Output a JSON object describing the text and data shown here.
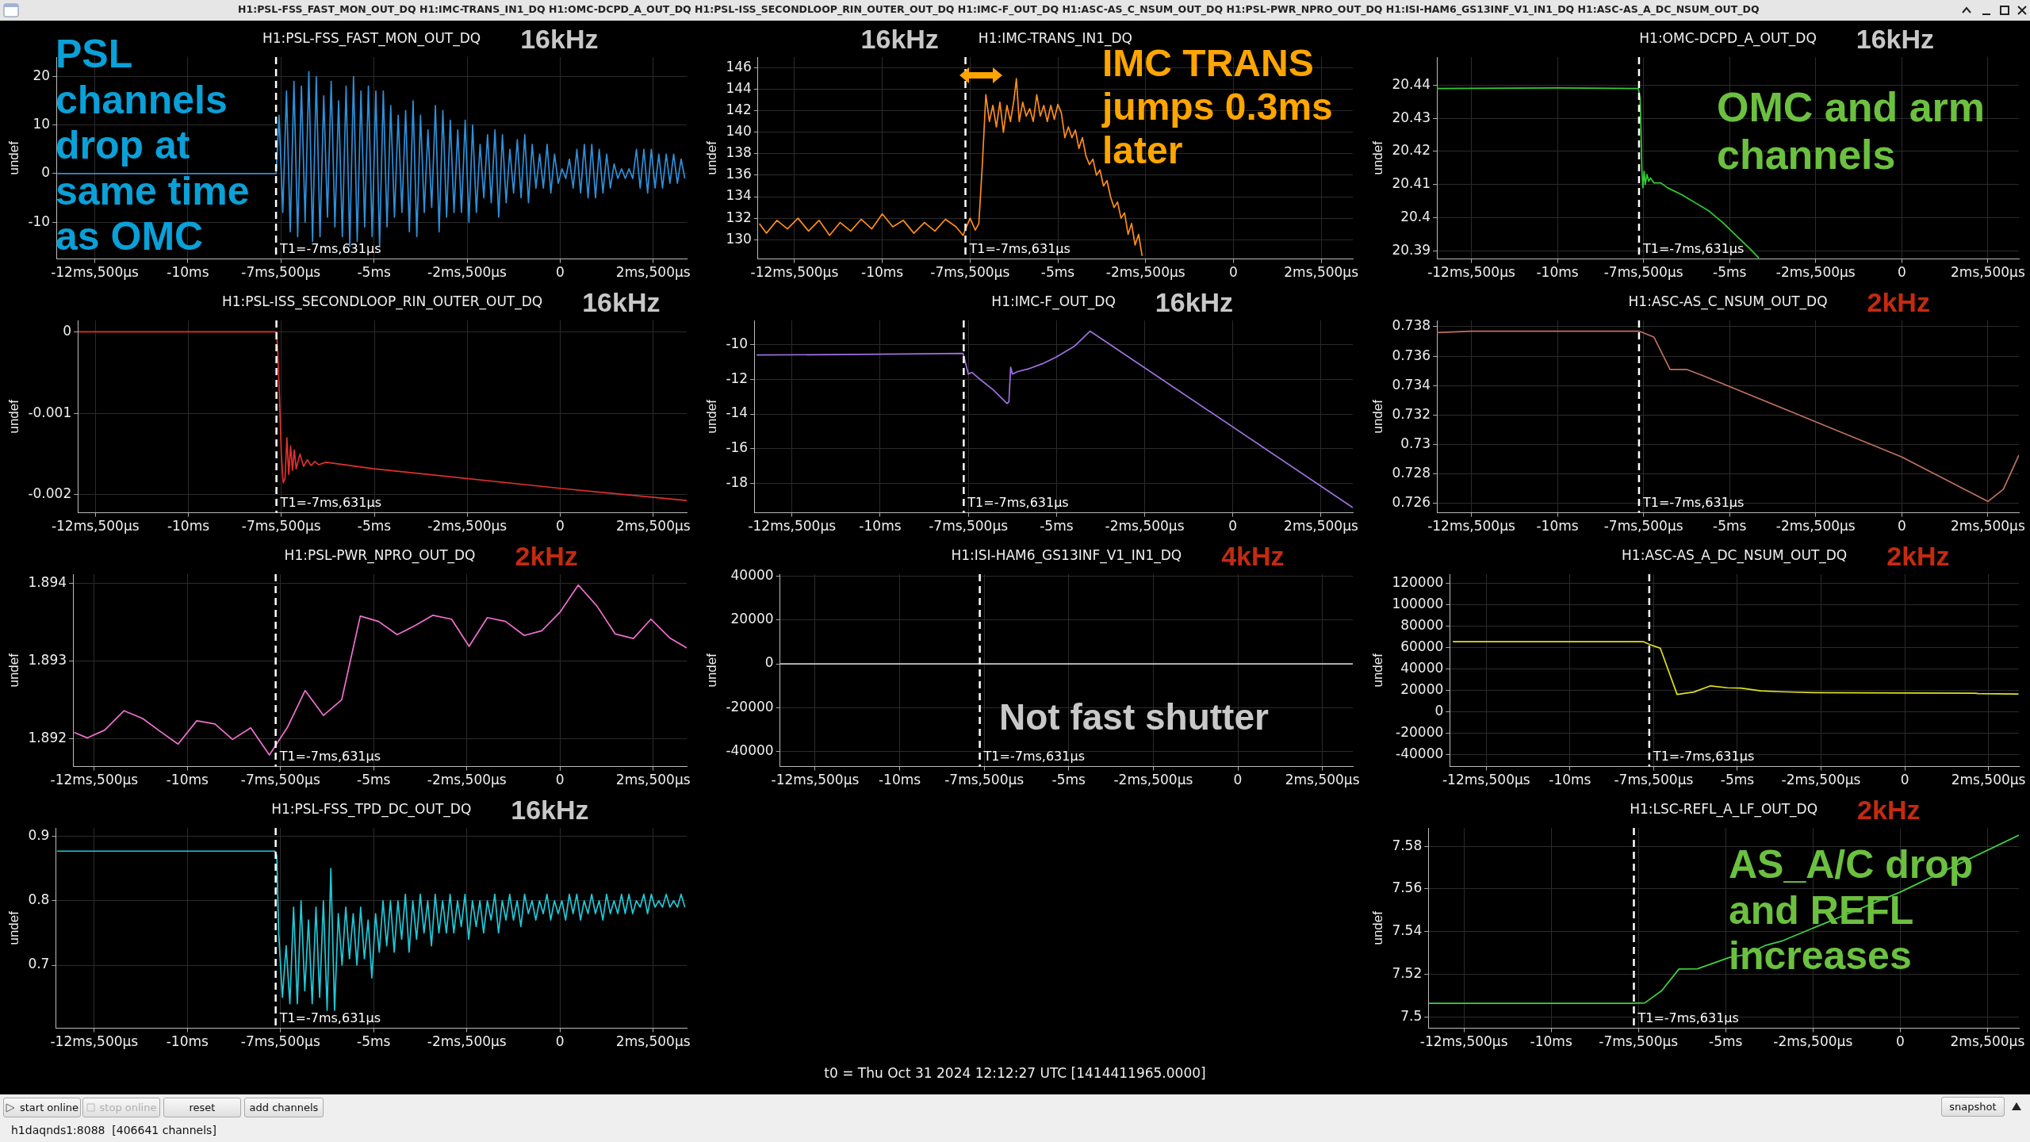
{
  "chart_data": [
    {
      "type": "line",
      "title": "H1:PSL-FSS_FAST_MON_OUT_DQ",
      "ylabel": "undef",
      "annotations": [
        "T1=-7ms,631μs",
        "16kHz",
        "PSL channels drop at same time as OMC"
      ],
      "marker": "none",
      "grid": true,
      "series": [
        {
          "color": "#2f8fd8",
          "x": [
            -13.5,
            -12,
            -10,
            -8,
            -7.63,
            -7.55,
            -7.45,
            -7.35,
            -7.25,
            -7.15,
            -7.05,
            -6.95,
            -6.85,
            -6.75,
            -6.65,
            -6.55,
            -6.45,
            -6.35,
            -6.25,
            -6.15,
            -6.05,
            -5.95,
            -5.85,
            -5.75,
            -5.65,
            -5.55,
            -5.45,
            -5.35,
            -5.25,
            -5.15,
            -5.05,
            -4.95,
            -4.85,
            -4.75,
            -4.65,
            -4.55,
            -4.45,
            -4.35,
            -4.25,
            -4.15,
            -4.05,
            -3.95,
            -3.85,
            -3.75,
            -3.65,
            -3.55,
            -3.45,
            -3.35,
            -3.25,
            -3.15,
            -3.05,
            -2.95,
            -2.85,
            -2.75,
            -2.65,
            -2.55,
            -2.45,
            -2.35,
            -2.25,
            -2.15,
            -2.05,
            -1.95,
            -1.85,
            -1.75,
            -1.65,
            -1.55,
            -1.45,
            -1.35,
            -1.25,
            -1.15,
            -1.05,
            -0.95,
            -0.85,
            -0.75,
            -0.65,
            -0.55,
            -0.45,
            -0.35,
            -0.25,
            -0.15,
            -0.05,
            0.05,
            0.15,
            0.25,
            0.35,
            0.45,
            0.55,
            0.65,
            0.75,
            0.85,
            0.95,
            1.05,
            1.15,
            1.25,
            1.35,
            1.45,
            1.55,
            1.65,
            1.75,
            1.85,
            1.95,
            2.05,
            2.15,
            2.25,
            2.35,
            2.45,
            2.55,
            2.65,
            2.75,
            2.85,
            2.95,
            3.05,
            3.15,
            3.25,
            3.35
          ],
          "values": [
            0,
            0,
            0,
            0,
            0,
            12,
            -8,
            17,
            -12,
            19,
            -13,
            18,
            -10,
            21,
            -14,
            20,
            -13,
            16,
            -9,
            19,
            -11,
            15,
            -13,
            18,
            -15,
            20,
            -14,
            17,
            -11,
            18,
            -13,
            17,
            -15,
            17,
            -11,
            14,
            -9,
            12,
            -8,
            13,
            -12,
            15,
            -13,
            12,
            -8,
            9,
            -7,
            14,
            -12,
            13,
            -9,
            11,
            -8,
            9,
            -8,
            11,
            -10,
            10,
            -8,
            6,
            -5,
            8,
            -6,
            9,
            -9,
            8,
            -6,
            5,
            -4,
            7,
            -5,
            8,
            -6,
            6,
            -3,
            4,
            -3,
            6,
            -4,
            4,
            -2,
            1,
            -1,
            3,
            -3,
            5,
            -4,
            6,
            -5,
            6,
            -5,
            5,
            -4,
            4,
            -3,
            2,
            -1,
            1,
            -1,
            1,
            -1,
            5,
            -3,
            5,
            -4,
            5,
            -3,
            4,
            -3,
            4,
            -2,
            4,
            -2,
            3,
            -1
          ]
        }
      ],
      "xlim": [
        -13.53,
        3.4
      ],
      "xticks": [
        {
          "value": -12.5,
          "label": "-12ms,500μs"
        },
        {
          "value": -10,
          "label": "-10ms"
        },
        {
          "value": -7.5,
          "label": "-7ms,500μs"
        },
        {
          "value": -5,
          "label": "-5ms"
        },
        {
          "value": -2.5,
          "label": "-2ms,500μs"
        },
        {
          "value": 0,
          "label": "0"
        },
        {
          "value": 2.5,
          "label": "2ms,500μs"
        }
      ],
      "ylim": [
        -17.6,
        24
      ],
      "yticks": [
        -10,
        0,
        10,
        20
      ],
      "ref_lines": [
        {
          "axis": "x",
          "value": -7.631,
          "color": "#ffffff",
          "line_style": "dashed"
        }
      ]
    },
    {
      "type": "line",
      "title": "H1:IMC-TRANS_IN1_DQ",
      "ylabel": "undef",
      "annotations": [
        "T1=-7ms,631μs",
        "16kHz",
        "IMC TRANS jumps 0.3ms later"
      ],
      "marker": "none",
      "grid": true,
      "series": [
        {
          "color": "#ff8c1a",
          "x": [
            -13.5,
            -13.3,
            -13.0,
            -12.7,
            -12.4,
            -12.1,
            -11.8,
            -11.5,
            -11.2,
            -10.9,
            -10.6,
            -10.3,
            -10.0,
            -9.7,
            -9.4,
            -9.1,
            -8.8,
            -8.5,
            -8.2,
            -7.9,
            -7.7,
            -7.6,
            -7.5,
            -7.35,
            -7.25,
            -7.15,
            -7.05,
            -6.95,
            -6.85,
            -6.75,
            -6.65,
            -6.55,
            -6.45,
            -6.35,
            -6.25,
            -6.18,
            -6.1,
            -6.0,
            -5.9,
            -5.8,
            -5.7,
            -5.6,
            -5.5,
            -5.4,
            -5.3,
            -5.2,
            -5.1,
            -5.0,
            -4.9,
            -4.8,
            -4.7,
            -4.6,
            -4.5,
            -4.4,
            -4.3,
            -4.2,
            -4.1,
            -4.0,
            -3.9,
            -3.8,
            -3.7,
            -3.6,
            -3.5,
            -3.4,
            -3.3,
            -3.2,
            -3.1,
            -3.0,
            -2.9,
            -2.8,
            -2.7,
            -2.6
          ],
          "values": [
            131.5,
            130.6,
            131.8,
            131,
            132,
            130.8,
            131.8,
            130.4,
            131.6,
            130.8,
            131.9,
            131,
            132.4,
            131.2,
            131.8,
            130.6,
            131.6,
            130.8,
            131.9,
            131.2,
            130.4,
            131.2,
            132,
            130.9,
            131.5,
            137,
            143.5,
            141,
            142.5,
            140.5,
            142.8,
            140,
            142.5,
            141,
            143,
            145,
            141,
            142.8,
            141.5,
            142.2,
            141,
            143.5,
            141.5,
            142.5,
            141,
            142.5,
            141.2,
            142.6,
            141.8,
            139.5,
            140.5,
            139.5,
            140.2,
            138.5,
            139.5,
            137.8,
            137,
            137.5,
            136,
            136.5,
            135,
            135.5,
            134,
            133,
            133.5,
            132,
            132.5,
            130.5,
            131.5,
            129.5,
            130.5,
            128.5
          ]
        }
      ],
      "xlim": [
        -13.54,
        3.4
      ],
      "xticks": [
        {
          "value": -12.5,
          "label": "-12ms,500μs"
        },
        {
          "value": -10,
          "label": "-10ms"
        },
        {
          "value": -7.5,
          "label": "-7ms,500μs"
        },
        {
          "value": -5,
          "label": "-5ms"
        },
        {
          "value": -2.5,
          "label": "-2ms,500μs"
        },
        {
          "value": 0,
          "label": "0"
        },
        {
          "value": 2.5,
          "label": "2ms,500μs"
        }
      ],
      "ylim": [
        128.2,
        147
      ],
      "yticks": [
        130,
        132,
        134,
        136,
        138,
        140,
        142,
        144,
        146
      ],
      "ref_lines": [
        {
          "axis": "x",
          "value": -7.631,
          "color": "#ffffff",
          "line_style": "dashed"
        }
      ]
    },
    {
      "type": "line",
      "title": "H1:OMC-DCPD_A_OUT_DQ",
      "ylabel": "undef",
      "annotations": [
        "T1=-7ms,631μs",
        "16kHz",
        "OMC and arm channels"
      ],
      "marker": "none",
      "grid": true,
      "series": [
        {
          "color": "#33cc33",
          "x": [
            -13.5,
            -10,
            -7.65,
            -7.6,
            -7.57,
            -7.55,
            -7.52,
            -7.48,
            -7.45,
            -7.4,
            -7.35,
            -7.3,
            -7.2,
            -7.0,
            -6.8,
            -6.4,
            -6.0,
            -5.6,
            -5.2,
            -4.8,
            -4.4,
            -4.15
          ],
          "values": [
            20.439,
            20.4392,
            20.439,
            20.436,
            20.425,
            20.415,
            20.409,
            20.414,
            20.41,
            20.413,
            20.411,
            20.412,
            20.4105,
            20.4105,
            20.409,
            20.407,
            20.4045,
            20.402,
            20.3985,
            20.3945,
            20.3905,
            20.3878
          ]
        }
      ],
      "xlim": [
        -13.5,
        3.4
      ],
      "xticks": [
        {
          "value": -12.5,
          "label": "-12ms,500μs"
        },
        {
          "value": -10,
          "label": "-10ms"
        },
        {
          "value": -7.5,
          "label": "-7ms,500μs"
        },
        {
          "value": -5,
          "label": "-5ms"
        },
        {
          "value": -2.5,
          "label": "-2ms,500μs"
        },
        {
          "value": 0,
          "label": "0"
        },
        {
          "value": 2.5,
          "label": "2ms,500μs"
        }
      ],
      "ylim": [
        20.3875,
        20.4485
      ],
      "yticks": [
        20.39,
        20.4,
        20.41,
        20.42,
        20.43,
        20.44
      ],
      "ref_lines": [
        {
          "axis": "x",
          "value": -7.631,
          "color": "#ffffff",
          "line_style": "dashed"
        }
      ]
    },
    {
      "type": "line",
      "title": "H1:PSL-ISS_SECONDLOOP_RIN_OUTER_OUT_DQ",
      "ylabel": "undef",
      "annotations": [
        "T1=-7ms,631μs",
        "16kHz"
      ],
      "marker": "none",
      "grid": true,
      "series": [
        {
          "color": "#e03030",
          "x": [
            -12.95,
            -7.63,
            -7.6,
            -7.55,
            -7.5,
            -7.45,
            -7.4,
            -7.35,
            -7.3,
            -7.25,
            -7.2,
            -7.15,
            -7.1,
            -7.0,
            -6.9,
            -6.8,
            -6.7,
            -6.6,
            -6.5,
            -6.3,
            -5,
            0,
            3.4
          ],
          "values": [
            0,
            0,
            -0.0002,
            -0.0008,
            -0.0015,
            -0.00185,
            -0.0018,
            -0.0013,
            -0.00175,
            -0.0014,
            -0.0017,
            -0.00145,
            -0.00168,
            -0.0015,
            -0.00165,
            -0.00157,
            -0.00164,
            -0.00159,
            -0.00163,
            -0.0016,
            -0.00168,
            -0.00192,
            -0.00207
          ]
        }
      ],
      "xlim": [
        -12.97,
        3.4
      ],
      "xticks": [
        {
          "value": -12.5,
          "label": "-12ms,500μs"
        },
        {
          "value": -10,
          "label": "-10ms"
        },
        {
          "value": -7.5,
          "label": "-7ms,500μs"
        },
        {
          "value": -5,
          "label": "-5ms"
        },
        {
          "value": -2.5,
          "label": "-2ms,500μs"
        },
        {
          "value": 0,
          "label": "0"
        },
        {
          "value": 2.5,
          "label": "2ms,500μs"
        }
      ],
      "ylim": [
        -0.00222,
        0.00014
      ],
      "yticks": [
        -0.002,
        -0.001,
        0
      ],
      "ref_lines": [
        {
          "axis": "x",
          "value": -7.631,
          "color": "#ffffff",
          "line_style": "dashed"
        }
      ]
    },
    {
      "type": "line",
      "title": "H1:IMC-F_OUT_DQ",
      "ylabel": "undef",
      "annotations": [
        "T1=-7ms,631μs",
        "16kHz"
      ],
      "marker": "none",
      "grid": true,
      "series": [
        {
          "color": "#a070e0",
          "x": [
            -13.5,
            -10,
            -7.65,
            -7.6,
            -7.5,
            -7.4,
            -7.2,
            -6.8,
            -6.4,
            -6.35,
            -6.3,
            -6.25,
            -6.1,
            -5.8,
            -5.4,
            -5.0,
            -4.5,
            -4.05,
            3.4
          ],
          "values": [
            -10.6,
            -10.55,
            -10.5,
            -10.9,
            -11.7,
            -11.6,
            -11.95,
            -12.6,
            -13.4,
            -13.3,
            -11.3,
            -11.7,
            -11.55,
            -11.4,
            -11.1,
            -10.7,
            -10.1,
            -9.22,
            -19.4
          ]
        }
      ],
      "xlim": [
        -13.57,
        3.4
      ],
      "xticks": [
        {
          "value": -12.5,
          "label": "-12ms,500μs"
        },
        {
          "value": -10,
          "label": "-10ms"
        },
        {
          "value": -7.5,
          "label": "-7ms,500μs"
        },
        {
          "value": -5,
          "label": "-5ms"
        },
        {
          "value": -2.5,
          "label": "-2ms,500μs"
        },
        {
          "value": 0,
          "label": "0"
        },
        {
          "value": 2.5,
          "label": "2ms,500μs"
        }
      ],
      "ylim": [
        -19.7,
        -8.6
      ],
      "yticks": [
        -18,
        -16,
        -14,
        -12,
        -10
      ],
      "ref_lines": [
        {
          "axis": "x",
          "value": -7.631,
          "color": "#ffffff",
          "line_style": "dashed"
        }
      ]
    },
    {
      "type": "line",
      "title": "H1:ASC-AS_C_NSUM_OUT_DQ",
      "ylabel": "undef",
      "annotations": [
        "T1=-7ms,631μs",
        "2kHz"
      ],
      "marker": "none",
      "grid": true,
      "series": [
        {
          "color": "#c07060",
          "x": [
            -13.5,
            -12.5,
            -7.63,
            -7.2,
            -6.73,
            -6.25,
            -5.8,
            0,
            2.5,
            2.95,
            3.4
          ],
          "values": [
            0.7376,
            0.7377,
            0.7377,
            0.7373,
            0.7351,
            0.7351,
            0.7347,
            0.72915,
            0.72613,
            0.72696,
            0.72928
          ]
        }
      ],
      "xlim": [
        -13.5,
        3.4
      ],
      "xticks": [
        {
          "value": -12.5,
          "label": "-12ms,500μs"
        },
        {
          "value": -10,
          "label": "-10ms"
        },
        {
          "value": -7.5,
          "label": "-7ms,500μs"
        },
        {
          "value": -5,
          "label": "-5ms"
        },
        {
          "value": -2.5,
          "label": "-2ms,500μs"
        },
        {
          "value": 0,
          "label": "0"
        },
        {
          "value": 2.5,
          "label": "2ms,500μs"
        }
      ],
      "ylim": [
        0.72536,
        0.73843
      ],
      "yticks": [
        0.726,
        0.728,
        0.73,
        0.732,
        0.734,
        0.736,
        0.738
      ],
      "ref_lines": [
        {
          "axis": "x",
          "value": -7.631,
          "color": "#ffffff",
          "line_style": "dashed"
        }
      ]
    },
    {
      "type": "line",
      "title": "H1:PSL-PWR_NPRO_OUT_DQ",
      "ylabel": "undef",
      "annotations": [
        "T1=-7ms,631μs",
        "2kHz"
      ],
      "marker": "none",
      "grid": true,
      "series": [
        {
          "color": "#f070d0",
          "x": [
            -13.04,
            -12.69,
            -12.22,
            -11.7,
            -11.2,
            -10.72,
            -10.25,
            -9.75,
            -9.26,
            -8.79,
            -8.3,
            -7.8,
            -7.31,
            -6.84,
            -6.35,
            -5.86,
            -5.36,
            -4.87,
            -4.37,
            -3.88,
            -3.41,
            -2.91,
            -2.44,
            -1.95,
            -1.46,
            -0.96,
            -0.49,
            0,
            0.49,
            0.99,
            1.48,
            1.97,
            2.44,
            2.94,
            3.4
          ],
          "values": [
            1.89208,
            1.89201,
            1.89211,
            1.89236,
            1.89226,
            1.89209,
            1.89193,
            1.89223,
            1.89219,
            1.89199,
            1.89214,
            1.89179,
            1.89215,
            1.89262,
            1.8923,
            1.8925,
            1.89358,
            1.89351,
            1.89334,
            1.89346,
            1.89359,
            1.89354,
            1.89319,
            1.89356,
            1.89351,
            1.89333,
            1.89339,
            1.89363,
            1.89398,
            1.89371,
            1.89335,
            1.89329,
            1.89354,
            1.8933,
            1.89317
          ]
        }
      ],
      "xlim": [
        -13.07,
        3.4
      ],
      "xticks": [
        {
          "value": -12.5,
          "label": "-12ms,500μs"
        },
        {
          "value": -10,
          "label": "-10ms"
        },
        {
          "value": -7.5,
          "label": "-7ms,500μs"
        },
        {
          "value": -5,
          "label": "-5ms"
        },
        {
          "value": -2.5,
          "label": "-2ms,500μs"
        },
        {
          "value": 0,
          "label": "0"
        },
        {
          "value": 2.5,
          "label": "2ms,500μs"
        }
      ],
      "ylim": [
        1.89164,
        1.89412
      ],
      "yticks": [
        1.892,
        1.893,
        1.894
      ],
      "ref_lines": [
        {
          "axis": "x",
          "value": -7.631,
          "color": "#ffffff",
          "line_style": "dashed"
        }
      ]
    },
    {
      "type": "line",
      "title": "H1:ISI-HAM6_GS13INF_V1_IN1_DQ",
      "ylabel": "undef",
      "annotations": [
        "T1=-7ms,631μs",
        "4kHz",
        "Not fast shutter"
      ],
      "marker": "none",
      "grid": true,
      "series": [
        {
          "color": "#c8c8c8",
          "x": [
            -13.54,
            3.4
          ],
          "values": [
            0,
            0
          ]
        }
      ],
      "xlim": [
        -13.54,
        3.4
      ],
      "xticks": [
        {
          "value": -12.5,
          "label": "-12ms,500μs"
        },
        {
          "value": -10,
          "label": "-10ms"
        },
        {
          "value": -7.5,
          "label": "-7ms,500μs"
        },
        {
          "value": -5,
          "label": "-5ms"
        },
        {
          "value": -2.5,
          "label": "-2ms,500μs"
        },
        {
          "value": 0,
          "label": "0"
        },
        {
          "value": 2.5,
          "label": "2ms,500μs"
        }
      ],
      "ylim": [
        -47000,
        41000
      ],
      "yticks": [
        -40000,
        -20000,
        0,
        20000,
        40000
      ],
      "ref_lines": [
        {
          "axis": "x",
          "value": -7.631,
          "color": "#ffffff",
          "line_style": "dashed"
        }
      ]
    },
    {
      "type": "line",
      "title": "H1:ASC-AS_A_DC_NSUM_OUT_DQ",
      "ylabel": "undef",
      "annotations": [
        "T1=-7ms,631μs",
        "2kHz"
      ],
      "marker": "none",
      "grid": true,
      "series": [
        {
          "color": "#e0e020",
          "x": [
            -13.5,
            -7.81,
            -7.6,
            -7.3,
            -6.8,
            -6.3,
            -5.8,
            -5.3,
            -4.9,
            -4.3,
            -3.7,
            -2.7,
            -1.25,
            2.1,
            2.2,
            3.4
          ],
          "values": [
            65400,
            65400,
            62500,
            59200,
            16100,
            18300,
            24100,
            22300,
            22000,
            19400,
            18600,
            17800,
            17500,
            17200,
            16800,
            16400
          ]
        }
      ],
      "xlim": [
        -13.59,
        3.41
      ],
      "xticks": [
        {
          "value": -12.5,
          "label": "-12ms,500μs"
        },
        {
          "value": -10,
          "label": "-10ms"
        },
        {
          "value": -7.5,
          "label": "-7ms,500μs"
        },
        {
          "value": -5,
          "label": "-5ms"
        },
        {
          "value": -2.5,
          "label": "-2ms,500μs"
        },
        {
          "value": 0,
          "label": "0"
        },
        {
          "value": 2.5,
          "label": "2ms,500μs"
        }
      ],
      "ylim": [
        -51300,
        128400
      ],
      "yticks": [
        -40000,
        -20000,
        0,
        20000,
        40000,
        60000,
        80000,
        100000,
        120000
      ],
      "ref_lines": [
        {
          "axis": "x",
          "value": -7.631,
          "color": "#ffffff",
          "line_style": "dashed"
        }
      ]
    },
    {
      "type": "line",
      "title": "H1:PSL-FSS_TPD_DC_OUT_DQ",
      "ylabel": "undef",
      "annotations": [
        "T1=-7ms,631μs",
        "16kHz"
      ],
      "marker": "none",
      "grid": true,
      "series": [
        {
          "color": "#20c8d8",
          "x": [
            -13.5,
            -10,
            -7.65,
            -7.6,
            -7.55,
            -7.45,
            -7.35,
            -7.25,
            -7.15,
            -7.05,
            -6.95,
            -6.85,
            -6.75,
            -6.65,
            -6.55,
            -6.45,
            -6.35,
            -6.25,
            -6.15,
            -6.05,
            -5.95,
            -5.85,
            -5.75,
            -5.65,
            -5.55,
            -5.45,
            -5.35,
            -5.25,
            -5.15,
            -5.05,
            -4.95,
            -4.85,
            -4.75,
            -4.65,
            -4.55,
            -4.45,
            -4.35,
            -4.25,
            -4.15,
            -4.05,
            -3.95,
            -3.85,
            -3.75,
            -3.65,
            -3.55,
            -3.45,
            -3.35,
            -3.25,
            -3.15,
            -3.05,
            -2.95,
            -2.85,
            -2.75,
            -2.65,
            -2.55,
            -2.45,
            -2.35,
            -2.25,
            -2.15,
            -2.05,
            -1.95,
            -1.85,
            -1.75,
            -1.65,
            -1.55,
            -1.45,
            -1.35,
            -1.25,
            -1.15,
            -1.05,
            -0.95,
            -0.85,
            -0.75,
            -0.65,
            -0.55,
            -0.45,
            -0.35,
            -0.25,
            -0.15,
            -0.05,
            0.05,
            0.15,
            0.25,
            0.35,
            0.45,
            0.55,
            0.65,
            0.75,
            0.85,
            0.95,
            1.05,
            1.15,
            1.25,
            1.35,
            1.45,
            1.55,
            1.65,
            1.75,
            1.85,
            1.95,
            2.05,
            2.15,
            2.25,
            2.35,
            2.45,
            2.55,
            2.65,
            2.75,
            2.85,
            2.95,
            3.05,
            3.15,
            3.25,
            3.35
          ],
          "values": [
            0.877,
            0.877,
            0.877,
            0.87,
            0.75,
            0.65,
            0.73,
            0.64,
            0.79,
            0.64,
            0.8,
            0.66,
            0.77,
            0.64,
            0.79,
            0.65,
            0.8,
            0.63,
            0.85,
            0.63,
            0.78,
            0.7,
            0.79,
            0.71,
            0.78,
            0.7,
            0.79,
            0.71,
            0.77,
            0.68,
            0.78,
            0.72,
            0.8,
            0.73,
            0.8,
            0.72,
            0.8,
            0.74,
            0.81,
            0.72,
            0.8,
            0.74,
            0.81,
            0.75,
            0.8,
            0.73,
            0.81,
            0.75,
            0.8,
            0.75,
            0.81,
            0.75,
            0.8,
            0.76,
            0.81,
            0.74,
            0.8,
            0.76,
            0.8,
            0.75,
            0.8,
            0.77,
            0.81,
            0.75,
            0.8,
            0.77,
            0.81,
            0.77,
            0.8,
            0.76,
            0.81,
            0.78,
            0.8,
            0.77,
            0.8,
            0.78,
            0.81,
            0.77,
            0.8,
            0.78,
            0.8,
            0.77,
            0.81,
            0.78,
            0.81,
            0.77,
            0.8,
            0.78,
            0.81,
            0.78,
            0.8,
            0.77,
            0.81,
            0.78,
            0.8,
            0.78,
            0.81,
            0.78,
            0.81,
            0.78,
            0.8,
            0.79,
            0.81,
            0.78,
            0.81,
            0.79,
            0.8,
            0.79,
            0.81,
            0.79,
            0.8,
            0.79,
            0.81,
            0.79
          ]
        }
      ],
      "xlim": [
        -13.53,
        3.4
      ],
      "xticks": [
        {
          "value": -12.5,
          "label": "-12ms,500μs"
        },
        {
          "value": -10,
          "label": "-10ms"
        },
        {
          "value": -7.5,
          "label": "-7ms,500μs"
        },
        {
          "value": -5,
          "label": "-5ms"
        },
        {
          "value": -2.5,
          "label": "-2ms,500μs"
        },
        {
          "value": 0,
          "label": "0"
        },
        {
          "value": 2.5,
          "label": "2ms,500μs"
        }
      ],
      "ylim": [
        0.602,
        0.913
      ],
      "yticks": [
        0.7,
        0.8,
        0.9
      ],
      "ref_lines": [
        {
          "axis": "x",
          "value": -7.631,
          "color": "#ffffff",
          "line_style": "dashed"
        }
      ]
    },
    {
      "type": "line",
      "title": "H1:LSC-REFL_A_LF_OUT_DQ",
      "ylabel": "undef",
      "annotations": [
        "T1=-7ms,631μs",
        "2kHz",
        "AS_A/C drop and REFL increases"
      ],
      "marker": "none",
      "grid": true,
      "series": [
        {
          "color": "#40d040",
          "x": [
            -13.5,
            -7.7,
            -7.32,
            -6.83,
            -6.34,
            -5.81,
            -4.9,
            -4.38,
            -3.86,
            -3.4,
            0,
            3.4
          ],
          "values": [
            7.5063,
            7.5063,
            7.5065,
            7.5123,
            7.5224,
            7.5225,
            7.5278,
            7.5293,
            7.5335,
            7.5355,
            7.5585,
            7.5852
          ]
        }
      ],
      "xlim": [
        -13.52,
        3.4
      ],
      "xticks": [
        {
          "value": -12.5,
          "label": "-12ms,500μs"
        },
        {
          "value": -10,
          "label": "-10ms"
        },
        {
          "value": -7.5,
          "label": "-7ms,500μs"
        },
        {
          "value": -5,
          "label": "-5ms"
        },
        {
          "value": -2.5,
          "label": "-2ms,500μs"
        },
        {
          "value": 0,
          "label": "0"
        },
        {
          "value": 2.5,
          "label": "2ms,500μs"
        }
      ],
      "ylim": [
        7.4946,
        7.5886
      ],
      "yticks": [
        7.5,
        7.52,
        7.54,
        7.56,
        7.58
      ],
      "ref_lines": [
        {
          "axis": "x",
          "value": -7.631,
          "color": "#ffffff",
          "line_style": "dashed"
        }
      ]
    },
    {
      "type": "other",
      "annotations": [
        "H1:PSL-FSS_FAST_MON_OUT_DQ H1:IMC-TRANS_IN1_DQ H1:OMC-DCPD_A_OUT_DQ H1:PSL-ISS_SECONDLOOP_RIN_OUTER_OUT_DQ H1:IMC-F_OUT_DQ H1:ASC-AS_C_NSUM_OUT_DQ H1:PSL-PWR_NPRO_OUT_DQ H1:ISI-HAM6_GS13INF_V1_IN1_DQ H1:ASC-AS_A_DC_NSUM_OUT_DQ",
        "t0 = Thu Oct 31 2024 12:12:27 UTC [1414411965.0000]",
        "start online",
        "stop online",
        "reset",
        "add channels",
        "snapshot",
        "h1daqnds1:8088  [406641 channels]"
      ]
    }
  ]
}
